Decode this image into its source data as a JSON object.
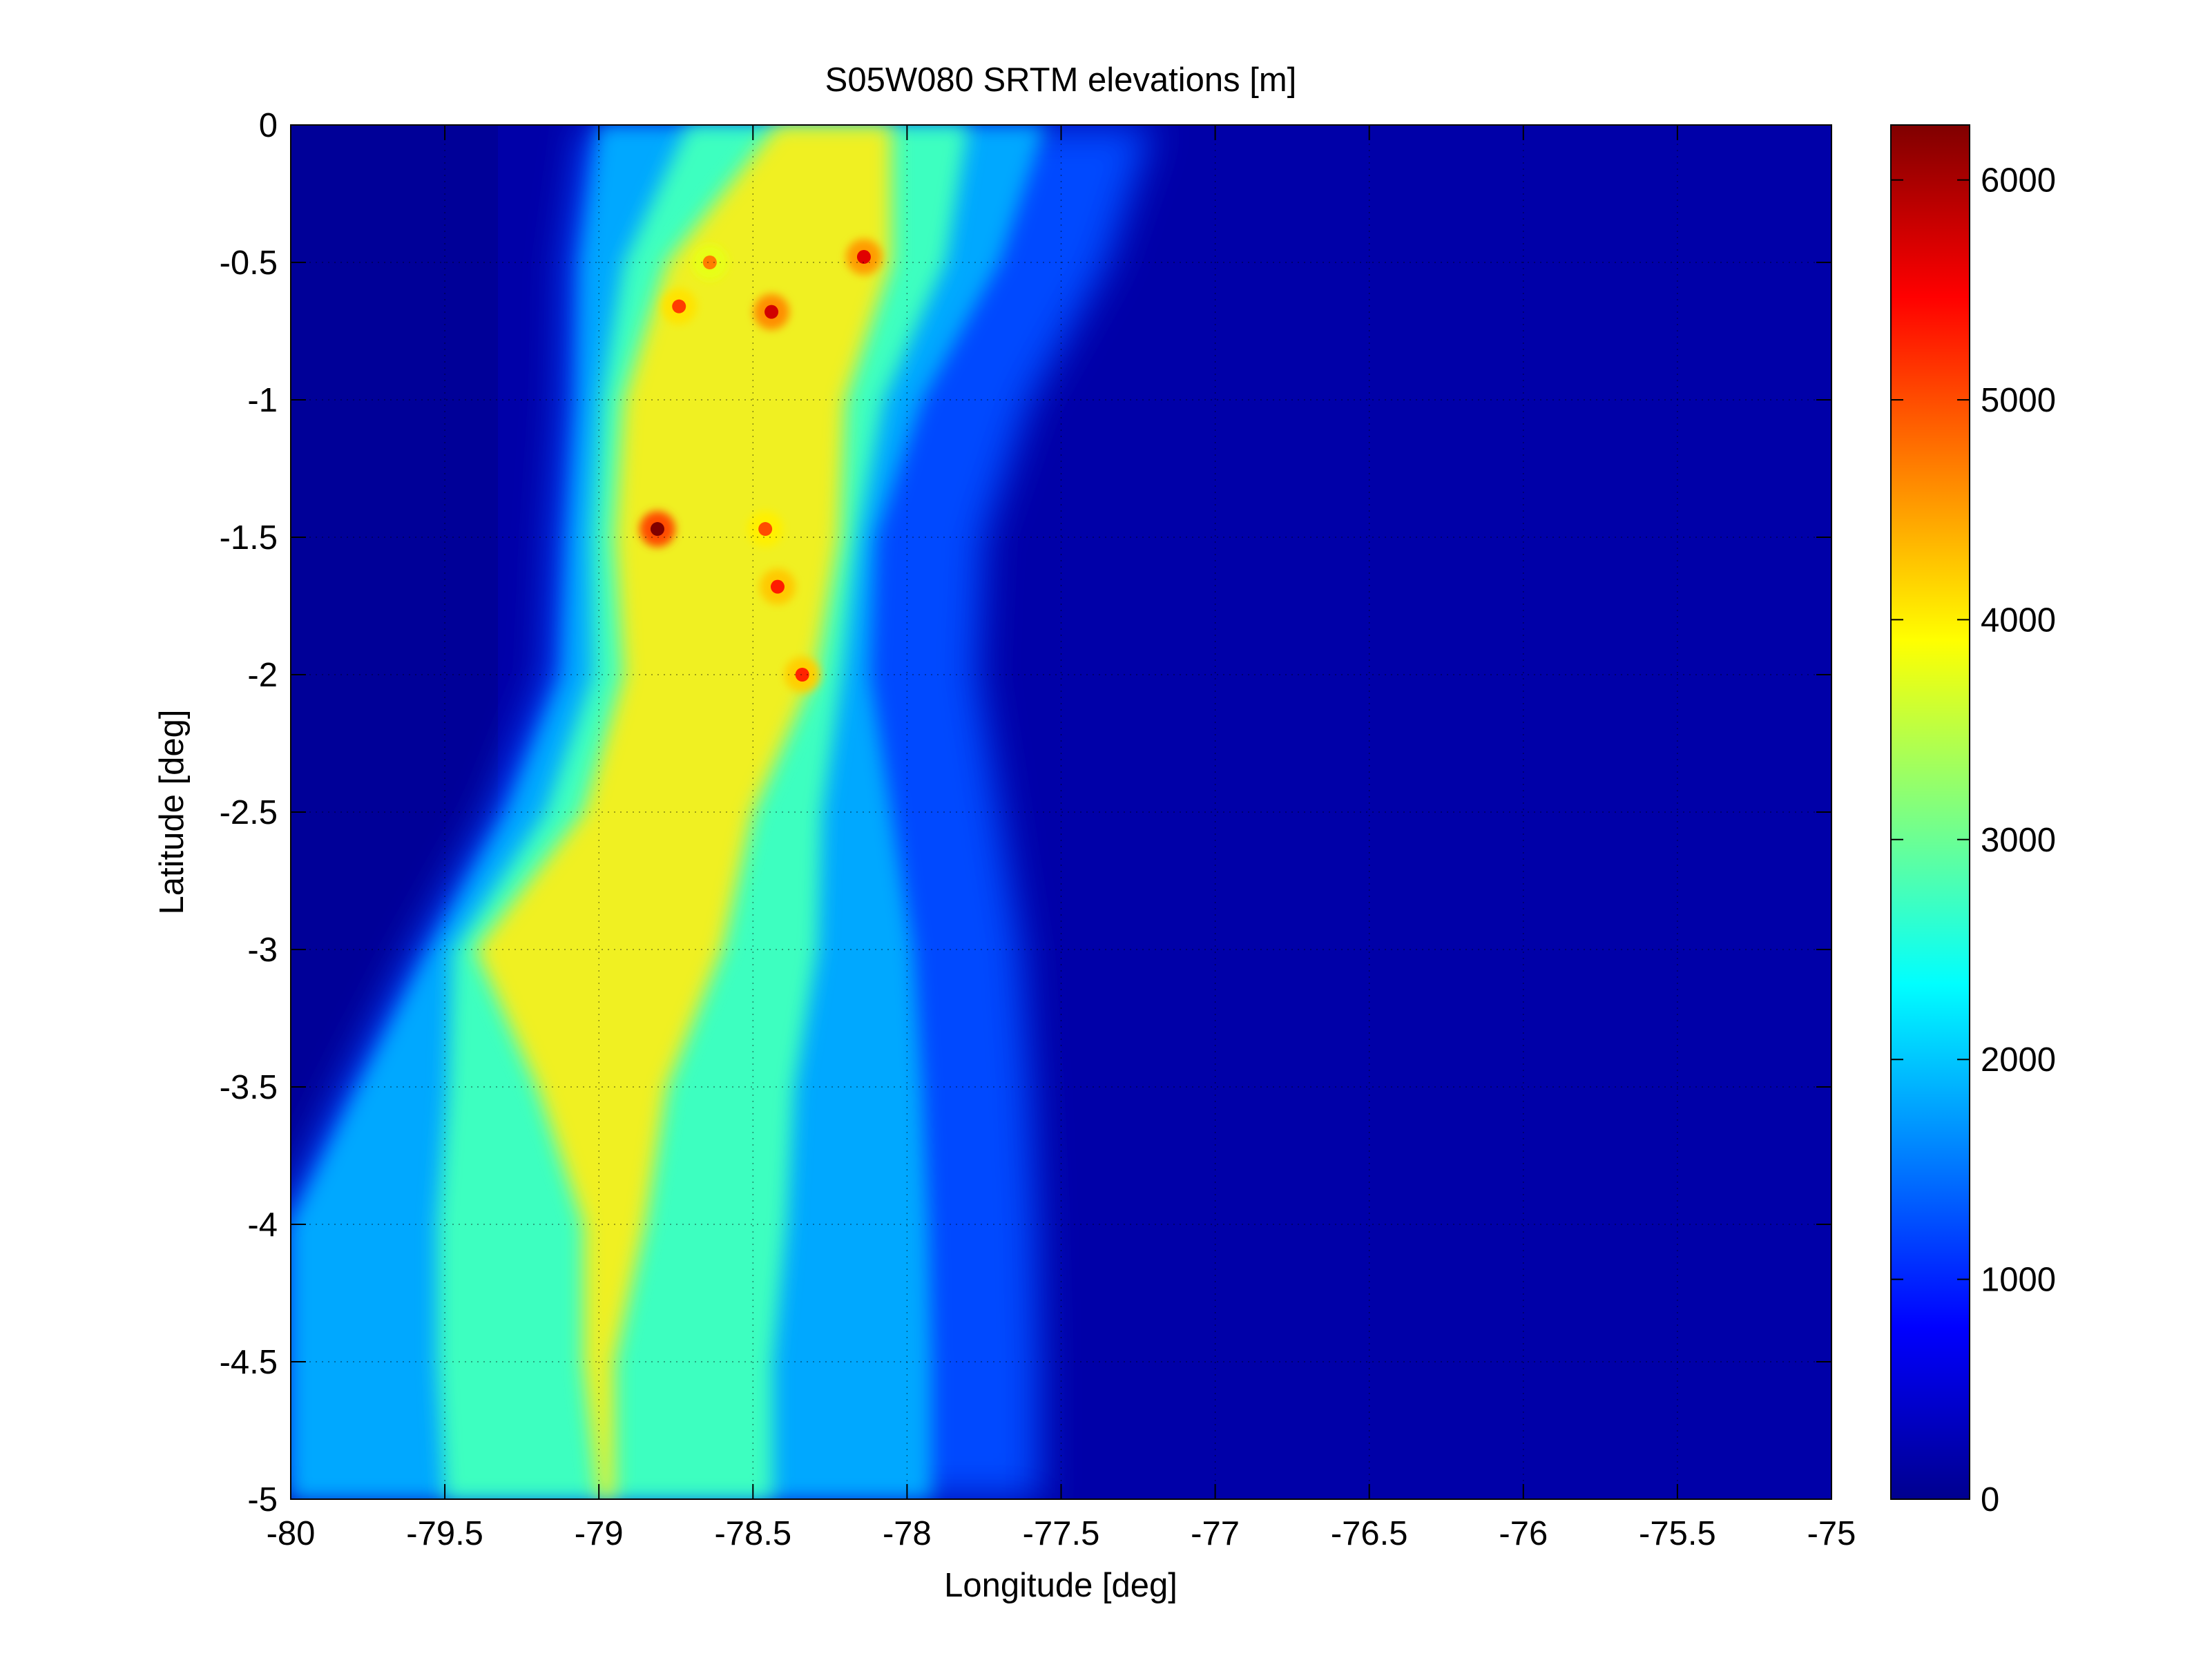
{
  "chart_data": {
    "type": "heatmap",
    "title": "S05W080 SRTM elevations [m]",
    "xlabel": "Longitude [deg]",
    "ylabel": "Latitude [deg]",
    "xlim": [
      -80,
      -75
    ],
    "ylim": [
      -5,
      0
    ],
    "xticks": [
      -80,
      -79.5,
      -79,
      -78.5,
      -78,
      -77.5,
      -77,
      -76.5,
      -76,
      -75.5,
      -75
    ],
    "xtick_labels": [
      "-80",
      "-79.5",
      "-79",
      "-78.5",
      "-78",
      "-77.5",
      "-77",
      "-76.5",
      "-76",
      "-75.5",
      "-75"
    ],
    "yticks": [
      0,
      -0.5,
      -1,
      -1.5,
      -2,
      -2.5,
      -3,
      -3.5,
      -4,
      -4.5,
      -5
    ],
    "ytick_labels": [
      "0",
      "-0.5",
      "-1",
      "-1.5",
      "-2",
      "-2.5",
      "-3",
      "-3.5",
      "-4",
      "-4.5",
      "-5"
    ],
    "grid": true,
    "colormap": "jet",
    "colorbar": {
      "min": 0,
      "max": 6250,
      "ticks": [
        0,
        1000,
        2000,
        3000,
        4000,
        5000,
        6000
      ],
      "tick_labels": [
        "0",
        "1000",
        "2000",
        "3000",
        "4000",
        "5000",
        "6000"
      ],
      "placement": "right"
    },
    "peaks": [
      {
        "lon": -78.81,
        "lat": -1.47,
        "elevation": 6250
      },
      {
        "lon": -78.44,
        "lat": -0.68,
        "elevation": 5750
      },
      {
        "lon": -78.14,
        "lat": -0.48,
        "elevation": 5650
      },
      {
        "lon": -78.42,
        "lat": -1.68,
        "elevation": 5300
      },
      {
        "lon": -78.34,
        "lat": -2.0,
        "elevation": 5250
      },
      {
        "lon": -78.74,
        "lat": -0.66,
        "elevation": 5100
      },
      {
        "lon": -78.46,
        "lat": -1.47,
        "elevation": 5000
      },
      {
        "lon": -78.64,
        "lat": -0.5,
        "elevation": 4700
      }
    ],
    "cordillera_profile": [
      {
        "lat": 0.0,
        "west": -79.0,
        "east": -77.55
      },
      {
        "lat": -0.5,
        "west": -79.06,
        "east": -77.7
      },
      {
        "lat": -1.0,
        "west": -79.07,
        "east": -77.95
      },
      {
        "lat": -1.5,
        "west": -79.1,
        "east": -78.1
      },
      {
        "lat": -2.0,
        "west": -79.12,
        "east": -78.12
      },
      {
        "lat": -2.5,
        "west": -79.3,
        "east": -78.05
      },
      {
        "lat": -3.0,
        "west": -79.55,
        "east": -77.98
      },
      {
        "lat": -3.5,
        "west": -79.78,
        "east": -77.95
      },
      {
        "lat": -4.0,
        "west": -80.0,
        "east": -77.93
      },
      {
        "lat": -4.5,
        "west": -80.0,
        "east": -77.92
      },
      {
        "lat": -5.0,
        "west": -80.0,
        "east": -77.92
      }
    ],
    "highland_profile": [
      {
        "lat": 0.0,
        "west": -78.42,
        "east": -78.05
      },
      {
        "lat": -0.5,
        "west": -78.78,
        "east": -78.05
      },
      {
        "lat": -1.0,
        "west": -78.92,
        "east": -78.2
      },
      {
        "lat": -1.5,
        "west": -78.95,
        "east": -78.22
      },
      {
        "lat": -2.0,
        "west": -78.92,
        "east": -78.3
      },
      {
        "lat": -2.5,
        "west": -79.05,
        "east": -78.5
      },
      {
        "lat": -3.0,
        "west": -79.4,
        "east": -78.6
      },
      {
        "lat": -3.5,
        "west": -79.2,
        "east": -78.78
      },
      {
        "lat": -4.0,
        "west": -79.05,
        "east": -78.85
      },
      {
        "lat": -4.5,
        "west": -79.05,
        "east": -78.95
      },
      {
        "lat": -5.0,
        "west": -79.0,
        "east": -78.95
      }
    ]
  }
}
